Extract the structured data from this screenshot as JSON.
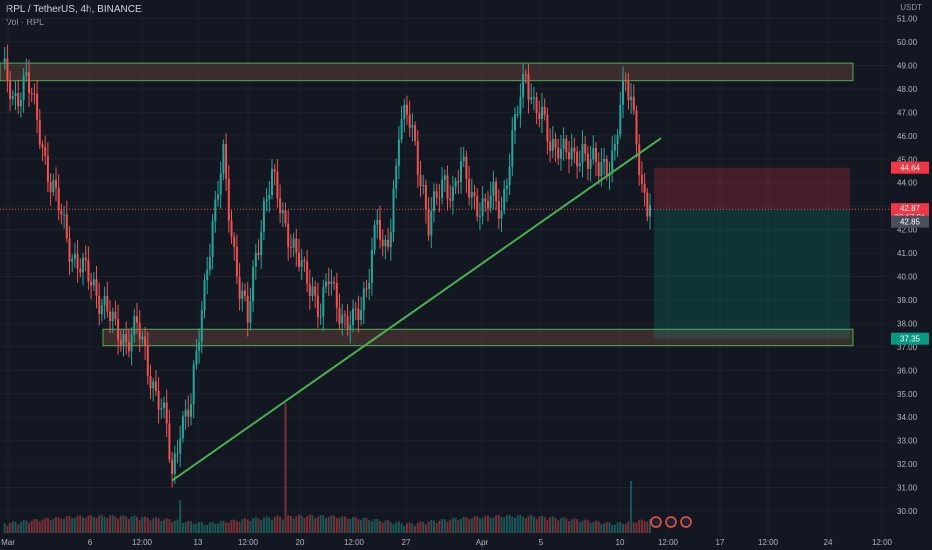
{
  "header": {
    "symbol_line": "RPL / TetherUS, 4h, BINANCE",
    "indicator": "Vol · RPL"
  },
  "price_axis_unit": "USDT",
  "price_axis_ticks": [
    "51.00",
    "50.00",
    "49.00",
    "48.00",
    "47.00",
    "46.00",
    "45.00",
    "44.00",
    "43.00",
    "42.00",
    "41.00",
    "40.00",
    "39.00",
    "38.00",
    "37.00",
    "36.00",
    "35.00",
    "34.00",
    "33.00",
    "32.00",
    "31.00",
    "30.00"
  ],
  "time_axis_ticks": [
    "Mar",
    "6",
    "12:00",
    "13",
    "12:00",
    "20",
    "12:00",
    "27",
    "Apr",
    "5",
    "10",
    "12:00",
    "17",
    "12:00",
    "24",
    "12:00"
  ],
  "price_tags": {
    "stop": "44.64",
    "last_price": "42.87",
    "countdown": "32:17:01",
    "current": "42.85",
    "target": "37.35"
  },
  "colors": {
    "up": "#26a69a",
    "down": "#ef5350",
    "trendline": "#4caf50",
    "zone_fill": "#5d4037",
    "zone_border": "#4caf50",
    "stop_zone": "#f23645",
    "target_zone": "#089981",
    "background": "#131722"
  },
  "chart_data": {
    "type": "candlestick",
    "title": "RPL / TetherUS, 4h, BINANCE",
    "ylim": [
      29.5,
      51.3
    ],
    "close_path": [
      {
        "x": 0,
        "y": 48.8
      },
      {
        "x": 4,
        "y": 47.6
      },
      {
        "x": 9,
        "y": 48.4
      },
      {
        "x": 14,
        "y": 46.2
      },
      {
        "x": 18,
        "y": 44.0
      },
      {
        "x": 22,
        "y": 42.5
      },
      {
        "x": 26,
        "y": 41.0
      },
      {
        "x": 30,
        "y": 40.2
      },
      {
        "x": 34,
        "y": 39.6
      },
      {
        "x": 38,
        "y": 38.8
      },
      {
        "x": 42,
        "y": 37.6
      },
      {
        "x": 46,
        "y": 37.4
      },
      {
        "x": 50,
        "y": 37.8
      },
      {
        "x": 54,
        "y": 36.2
      },
      {
        "x": 58,
        "y": 34.8
      },
      {
        "x": 61,
        "y": 33.4
      },
      {
        "x": 63,
        "y": 31.4
      },
      {
        "x": 66,
        "y": 33.8
      },
      {
        "x": 70,
        "y": 34.4
      },
      {
        "x": 73,
        "y": 37.6
      },
      {
        "x": 76,
        "y": 40.8
      },
      {
        "x": 79,
        "y": 42.8
      },
      {
        "x": 82,
        "y": 45.0
      },
      {
        "x": 85,
        "y": 42.0
      },
      {
        "x": 88,
        "y": 39.5
      },
      {
        "x": 91,
        "y": 38.0
      },
      {
        "x": 94,
        "y": 41.0
      },
      {
        "x": 97,
        "y": 43.0
      },
      {
        "x": 100,
        "y": 44.1
      },
      {
        "x": 103,
        "y": 43.0
      },
      {
        "x": 106,
        "y": 42.0
      },
      {
        "x": 109,
        "y": 40.8
      },
      {
        "x": 112,
        "y": 40.0
      },
      {
        "x": 115,
        "y": 39.6
      },
      {
        "x": 118,
        "y": 38.5
      },
      {
        "x": 121,
        "y": 39.8
      },
      {
        "x": 124,
        "y": 39.0
      },
      {
        "x": 127,
        "y": 38.2
      },
      {
        "x": 130,
        "y": 37.9
      },
      {
        "x": 133,
        "y": 38.6
      },
      {
        "x": 136,
        "y": 40.5
      },
      {
        "x": 139,
        "y": 42.5
      },
      {
        "x": 141,
        "y": 40.6
      },
      {
        "x": 144,
        "y": 42.2
      },
      {
        "x": 147,
        "y": 46.5
      },
      {
        "x": 150,
        "y": 46.8
      },
      {
        "x": 153,
        "y": 45.5
      },
      {
        "x": 156,
        "y": 43.8
      },
      {
        "x": 158,
        "y": 42.2
      },
      {
        "x": 161,
        "y": 43.2
      },
      {
        "x": 164,
        "y": 44.2
      },
      {
        "x": 167,
        "y": 43.6
      },
      {
        "x": 170,
        "y": 44.6
      },
      {
        "x": 173,
        "y": 43.8
      },
      {
        "x": 176,
        "y": 43.2
      },
      {
        "x": 179,
        "y": 42.8
      },
      {
        "x": 182,
        "y": 43.4
      },
      {
        "x": 185,
        "y": 43.0
      },
      {
        "x": 188,
        "y": 45.0
      },
      {
        "x": 191,
        "y": 47.0
      },
      {
        "x": 194,
        "y": 48.8
      },
      {
        "x": 197,
        "y": 47.4
      },
      {
        "x": 200,
        "y": 46.6
      },
      {
        "x": 203,
        "y": 45.6
      },
      {
        "x": 206,
        "y": 45.8
      },
      {
        "x": 209,
        "y": 45.2
      },
      {
        "x": 212,
        "y": 44.8
      },
      {
        "x": 215,
        "y": 45.6
      },
      {
        "x": 218,
        "y": 45.0
      },
      {
        "x": 221,
        "y": 44.4
      },
      {
        "x": 224,
        "y": 44.8
      },
      {
        "x": 227,
        "y": 45.6
      },
      {
        "x": 229,
        "y": 47.2
      },
      {
        "x": 231,
        "y": 48.0
      },
      {
        "x": 233,
        "y": 47.6
      },
      {
        "x": 235,
        "y": 46.2
      },
      {
        "x": 237,
        "y": 43.8
      },
      {
        "x": 239,
        "y": 42.7
      },
      {
        "x": 240,
        "y": 42.87
      }
    ],
    "volume_spikes": [
      {
        "x": 105,
        "v": 1.0
      },
      {
        "x": 233,
        "v": 0.4
      },
      {
        "x": 66,
        "v": 0.25
      }
    ],
    "horizontal_zones": [
      {
        "name": "resistance",
        "from": 48.35,
        "to": 49.1
      },
      {
        "name": "support",
        "from": 37.05,
        "to": 37.75
      }
    ],
    "trendline": {
      "from": {
        "x": 63,
        "y": 31.3
      },
      "to": {
        "x": 250,
        "y": 45.9
      }
    },
    "position": {
      "type": "short",
      "entry": 42.87,
      "stop": 44.64,
      "target": 37.35
    }
  }
}
